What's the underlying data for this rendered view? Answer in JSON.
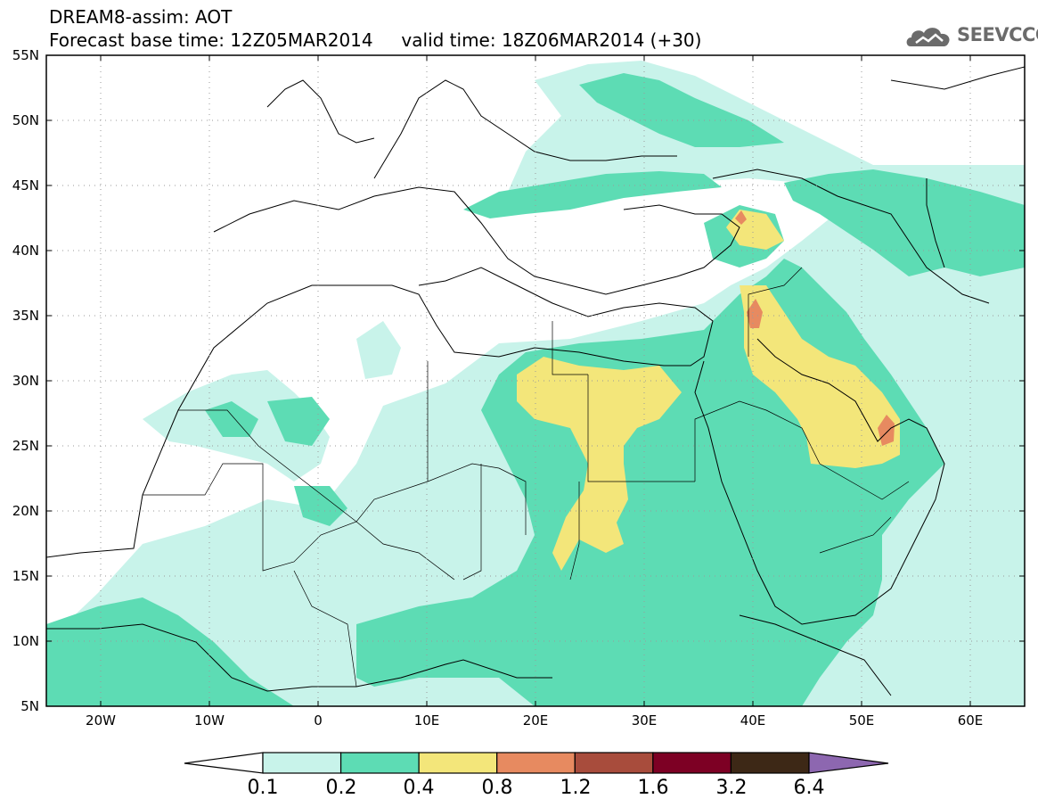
{
  "header": {
    "model_title": "DREAM8-assim: AOT",
    "forecast_line": "Forecast base time: 12Z05MAR2014     valid time: 18Z06MAR2014 (+30)"
  },
  "logo": {
    "text": "SEEVCCC",
    "icon": "cloud-icon"
  },
  "map": {
    "lon_range": [
      -25,
      65
    ],
    "lat_range": [
      5,
      55
    ],
    "grid": true,
    "lat_labels": [
      "55N",
      "50N",
      "45N",
      "40N",
      "35N",
      "30N",
      "25N",
      "20N",
      "15N",
      "10N",
      "5N"
    ],
    "lat_values": [
      55,
      50,
      45,
      40,
      35,
      30,
      25,
      20,
      15,
      10,
      5
    ],
    "lon_labels": [
      "20W",
      "10W",
      "0",
      "10E",
      "20E",
      "30E",
      "40E",
      "50E",
      "60E"
    ],
    "lon_values": [
      -20,
      -10,
      0,
      10,
      20,
      30,
      40,
      50,
      60
    ]
  },
  "colorbar": {
    "labels": [
      "0.1",
      "0.2",
      "0.4",
      "0.8",
      "1.2",
      "1.6",
      "3.2",
      "6.4"
    ],
    "colors": [
      "#c8f3ea",
      "#5ddcb4",
      "#f3e67a",
      "#e78a60",
      "#a84c3c",
      "#7d0024",
      "#3d2816"
    ],
    "under_color": "#ffffff",
    "over_color": "#8d67b0"
  }
}
